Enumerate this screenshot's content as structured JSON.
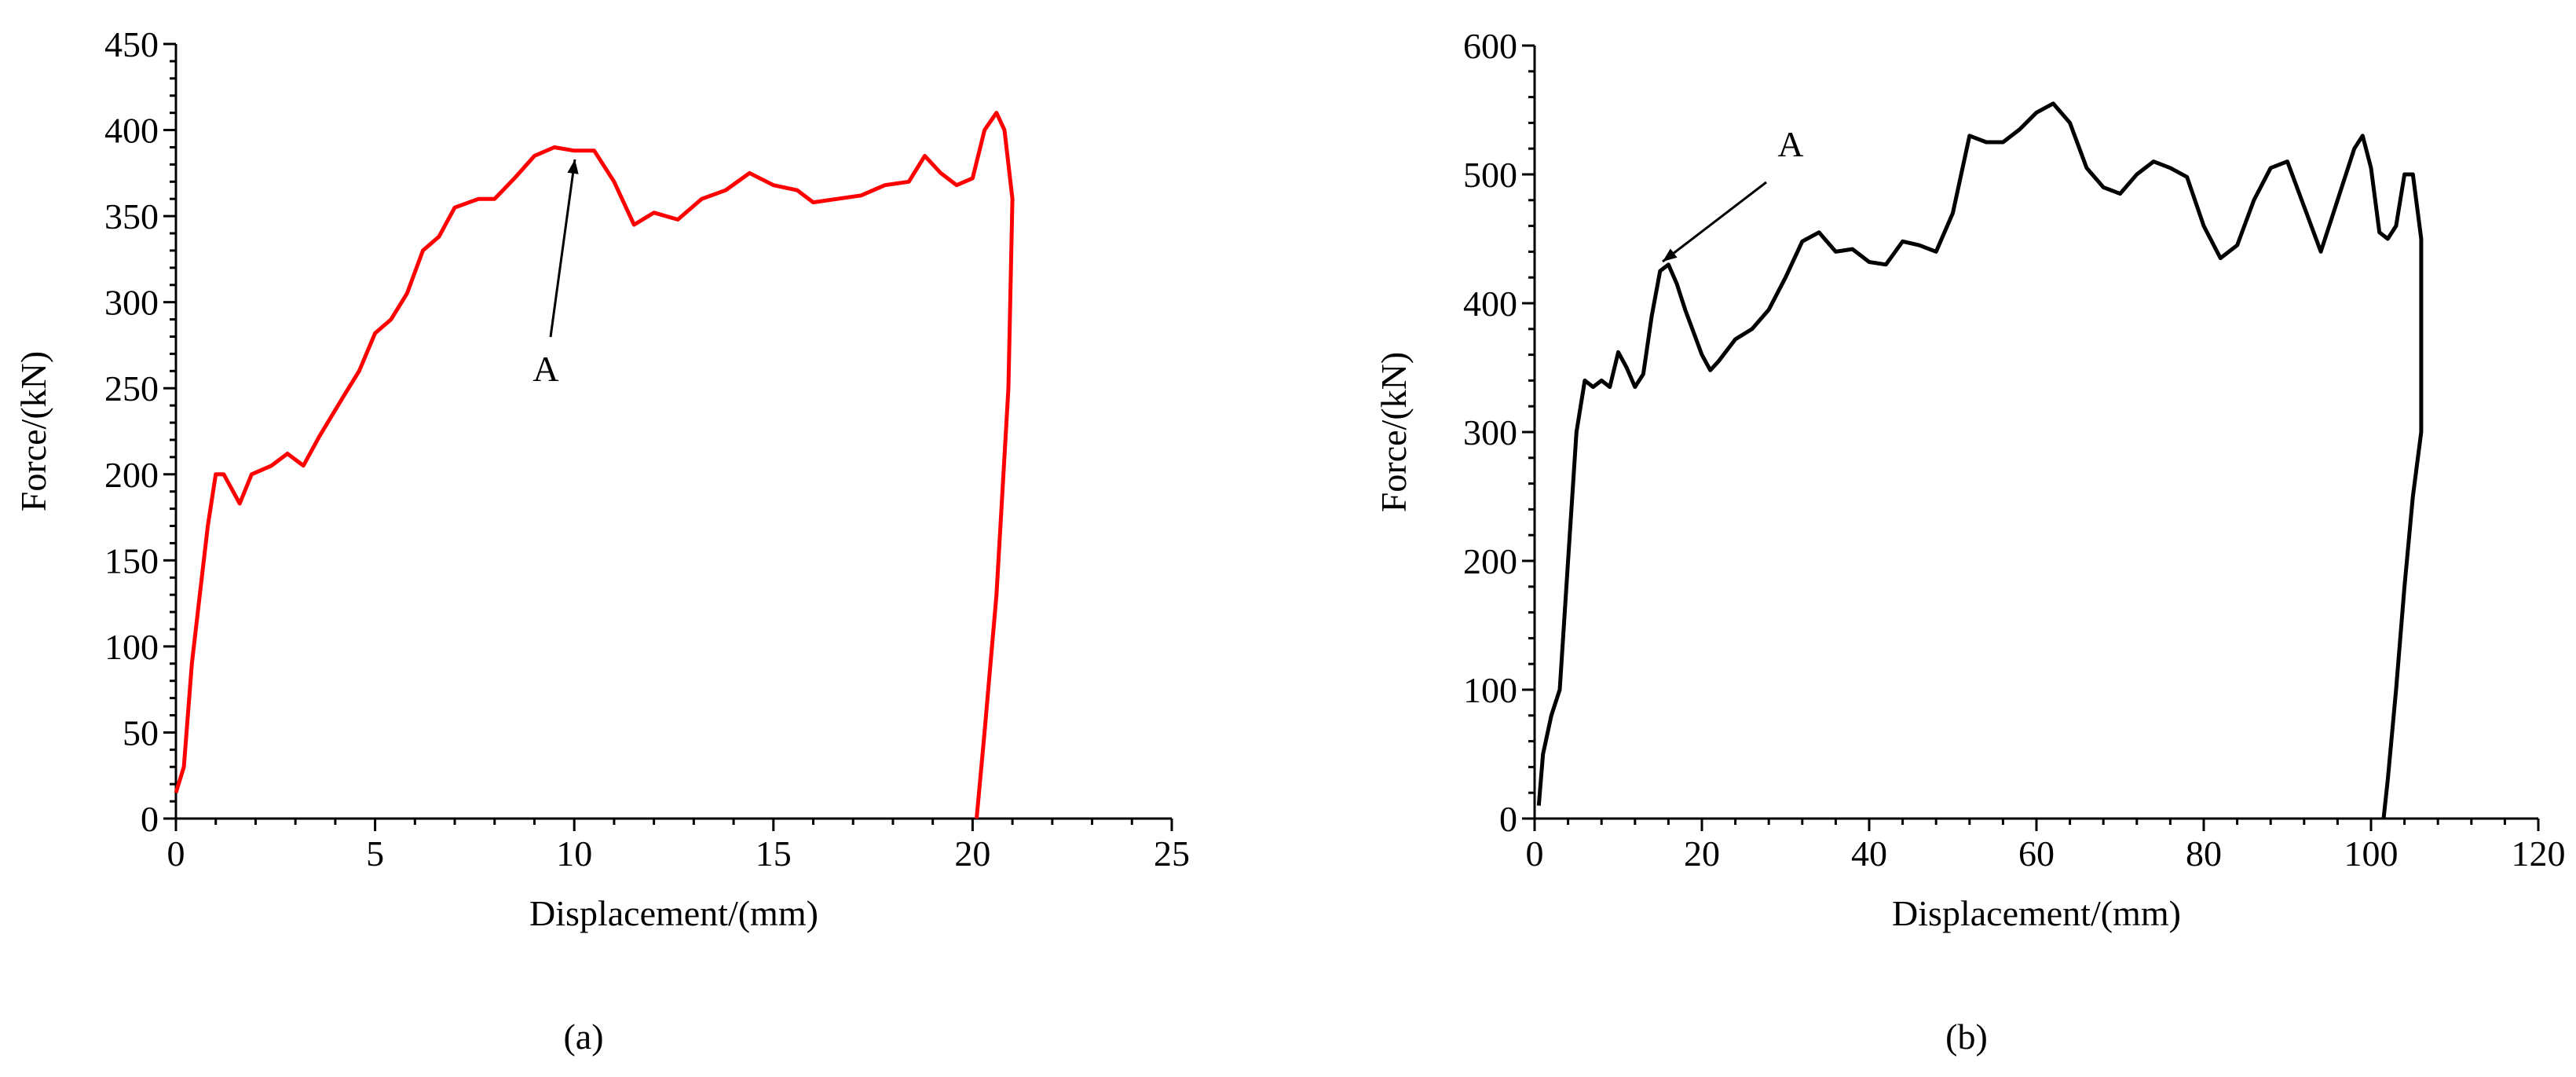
{
  "chart_data": [
    {
      "type": "line",
      "label": "(a)",
      "x_label": "Displacement/(mm)",
      "y_label": "Force/(kN)",
      "annotation": "A",
      "color": "#ff0000",
      "xlim": [
        0,
        25
      ],
      "ylim": [
        0,
        450
      ],
      "xticks": [
        0,
        5,
        10,
        15,
        20,
        25
      ],
      "yticks": [
        0,
        50,
        100,
        150,
        200,
        250,
        300,
        350,
        400,
        450
      ],
      "x": [
        0,
        0.2,
        0.4,
        0.6,
        0.8,
        1.0,
        1.2,
        1.6,
        1.9,
        2.4,
        2.8,
        3.2,
        3.6,
        4.2,
        4.6,
        5.0,
        5.4,
        5.8,
        6.2,
        6.6,
        7.0,
        7.6,
        8.0,
        8.5,
        9.0,
        9.5,
        10.0,
        10.5,
        11.0,
        11.5,
        12.0,
        12.6,
        13.2,
        13.8,
        14.4,
        15.0,
        15.6,
        16.0,
        16.6,
        17.2,
        17.8,
        18.4,
        18.8,
        19.2,
        19.6,
        20.0,
        20.3,
        20.6,
        20.8,
        21.0,
        20.9,
        20.6,
        20.3,
        20.1
      ],
      "values": [
        15,
        30,
        90,
        130,
        170,
        200,
        200,
        183,
        200,
        205,
        212,
        205,
        222,
        245,
        260,
        282,
        290,
        305,
        330,
        338,
        355,
        360,
        360,
        372,
        385,
        390,
        388,
        388,
        370,
        345,
        352,
        348,
        360,
        365,
        375,
        368,
        365,
        358,
        360,
        362,
        368,
        370,
        385,
        375,
        368,
        372,
        400,
        410,
        400,
        360,
        250,
        130,
        50,
        0
      ]
    },
    {
      "type": "line",
      "label": "(b)",
      "x_label": "Displacement/(mm)",
      "y_label": "Force/(kN)",
      "annotation": "A",
      "color": "#000000",
      "xlim": [
        0,
        120
      ],
      "ylim": [
        0,
        600
      ],
      "xticks": [
        0,
        20,
        40,
        60,
        80,
        100,
        120
      ],
      "yticks": [
        0,
        100,
        200,
        300,
        400,
        500,
        600
      ],
      "x": [
        0.5,
        1,
        2,
        3,
        4,
        5,
        6,
        7,
        8,
        9,
        10,
        11,
        12,
        13,
        14,
        15,
        16,
        17,
        18,
        20,
        21,
        22,
        24,
        26,
        28,
        30,
        32,
        34,
        36,
        38,
        40,
        42,
        44,
        46,
        48,
        50,
        52,
        54,
        56,
        58,
        60,
        62,
        64,
        66,
        68,
        70,
        72,
        74,
        76,
        78,
        80,
        82,
        84,
        86,
        88,
        90,
        92,
        94,
        96,
        98,
        99,
        100,
        101,
        102,
        103,
        104,
        105,
        106,
        106,
        105,
        104,
        103,
        102,
        101.5
      ],
      "values": [
        10,
        50,
        80,
        100,
        200,
        300,
        340,
        335,
        340,
        335,
        362,
        350,
        335,
        345,
        390,
        425,
        430,
        415,
        395,
        360,
        348,
        355,
        372,
        380,
        395,
        420,
        448,
        455,
        440,
        442,
        432,
        430,
        448,
        445,
        440,
        470,
        530,
        525,
        525,
        535,
        548,
        555,
        540,
        505,
        490,
        485,
        500,
        510,
        505,
        498,
        460,
        435,
        445,
        480,
        505,
        510,
        475,
        440,
        480,
        520,
        530,
        505,
        455,
        450,
        460,
        500,
        500,
        450,
        300,
        250,
        180,
        100,
        30,
        0
      ]
    }
  ]
}
